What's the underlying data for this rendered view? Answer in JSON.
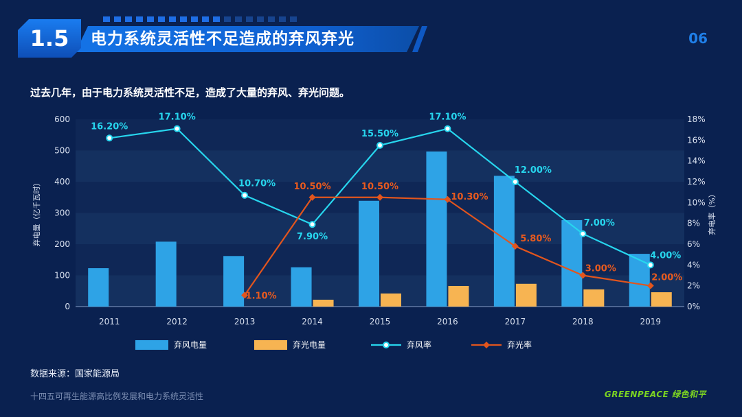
{
  "header": {
    "section_number": "1.5",
    "title": "电力系统灵活性不足造成的弃风弃光",
    "page_number": "06"
  },
  "intro_text": "过去几年，由于电力系统灵活性不足，造成了大量的弃风、弃光问题。",
  "source_text": "数据来源：国家能源局",
  "footer_text": "十四五可再生能源高比例发展和电力系统灵活性",
  "logo_text": "GREENPEACE 绿色和平",
  "chart_data": {
    "type": "bar",
    "categories": [
      "2011",
      "2012",
      "2013",
      "2014",
      "2015",
      "2016",
      "2017",
      "2018",
      "2019"
    ],
    "ylabel": "弃电量（亿千瓦时）",
    "y2label": "弃电率（%）",
    "ylim": [
      0,
      600
    ],
    "y2lim": [
      0,
      18
    ],
    "yticks": [
      "0",
      "100",
      "200",
      "300",
      "400",
      "500",
      "600"
    ],
    "y2ticks": [
      "0%",
      "2%",
      "4%",
      "6%",
      "8%",
      "10%",
      "12%",
      "14%",
      "16%",
      "18%"
    ],
    "legend_position": "bottom",
    "series": [
      {
        "name": "弃风电量",
        "kind": "bar",
        "axis": "left",
        "color": "#2ea3e6",
        "values": [
          123,
          208,
          162,
          126,
          339,
          497,
          419,
          277,
          169
        ]
      },
      {
        "name": "弃光电量",
        "kind": "bar",
        "axis": "left",
        "color": "#f7b452",
        "values": [
          null,
          null,
          null,
          22,
          42,
          66,
          73,
          55,
          46
        ]
      },
      {
        "name": "弃风率",
        "kind": "line",
        "axis": "right",
        "color": "#27d6ee",
        "values": [
          16.2,
          17.1,
          10.7,
          7.9,
          15.5,
          17.1,
          12.0,
          7.0,
          4.0
        ],
        "labels": [
          "16.20%",
          "17.10%",
          "10.70%",
          "7.90%",
          "15.50%",
          "17.10%",
          "12.00%",
          "7.00%",
          "4.00%"
        ]
      },
      {
        "name": "弃光率",
        "kind": "line",
        "axis": "right",
        "color": "#e2551d",
        "values": [
          null,
          null,
          1.1,
          10.5,
          10.5,
          10.3,
          5.8,
          3.0,
          2.0
        ],
        "labels": [
          "",
          "",
          "1.10%",
          "10.50%",
          "10.50%",
          "10.30%",
          "5.80%",
          "3.00%",
          "2.00%"
        ]
      }
    ]
  }
}
